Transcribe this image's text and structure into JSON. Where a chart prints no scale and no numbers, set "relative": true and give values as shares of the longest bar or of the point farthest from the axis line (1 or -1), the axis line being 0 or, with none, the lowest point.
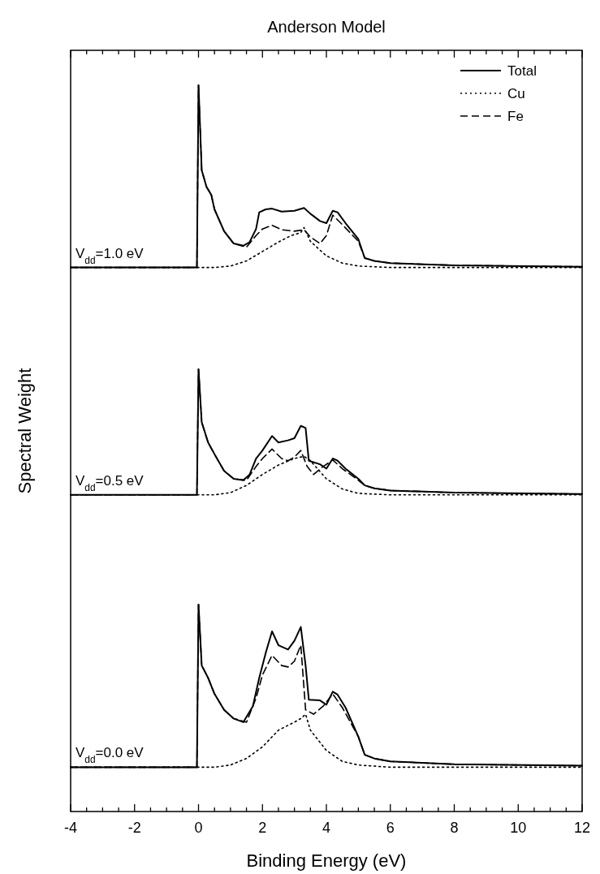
{
  "chart_data": {
    "type": "line",
    "title": "Anderson Model",
    "xlabel": "Binding Energy (eV)",
    "ylabel": "Spectral Weight",
    "relative": true,
    "legend": "top right",
    "grid": false,
    "xlim": [
      -4,
      12
    ],
    "xticks": [
      -4,
      {
        "value": -3.5,
        "label": null
      },
      {
        "value": -3,
        "label": null
      },
      {
        "value": -2.5,
        "label": null
      },
      -2,
      {
        "value": -1.5,
        "label": null
      },
      {
        "value": -1,
        "label": null
      },
      {
        "value": -0.5,
        "label": null
      },
      0,
      {
        "value": 0.5,
        "label": null
      },
      {
        "value": 1,
        "label": null
      },
      {
        "value": 1.5,
        "label": null
      },
      2,
      {
        "value": 2.5,
        "label": null
      },
      {
        "value": 3,
        "label": null
      },
      {
        "value": 3.5,
        "label": null
      },
      4,
      {
        "value": 4.5,
        "label": null
      },
      {
        "value": 5,
        "label": null
      },
      {
        "value": 5.5,
        "label": null
      },
      6,
      {
        "value": 6.5,
        "label": null
      },
      {
        "value": 7,
        "label": null
      },
      {
        "value": 7.5,
        "label": null
      },
      8,
      {
        "value": 8.5,
        "label": null
      },
      {
        "value": 9,
        "label": null
      },
      {
        "value": 9.5,
        "label": null
      },
      10,
      {
        "value": 10.5,
        "label": null
      },
      {
        "value": 11,
        "label": null
      },
      {
        "value": 11.5,
        "label": null
      },
      12
    ],
    "annotations": [
      "V$_{dd}$=1.0 eV",
      "V$_{dd}$=0.5 eV",
      "V$_{dd}$=0.0 eV"
    ],
    "series": [
      {
        "name": "Total",
        "color": "#000000",
        "line_style": "solid",
        "x": [
          -4,
          -0.05,
          0,
          0.1,
          0.25,
          0.4,
          0.5,
          0.8,
          1.1,
          1.4,
          1.6,
          1.8,
          1.9,
          2.1,
          2.3,
          2.6,
          3.0,
          3.3,
          3.5,
          3.8,
          4.0,
          4.2,
          4.35,
          4.6,
          5.0,
          5.2,
          5.5,
          6,
          8,
          12
        ],
        "values": [
          0.749,
          0.749,
          1.0,
          0.883,
          0.86,
          0.849,
          0.829,
          0.799,
          0.782,
          0.779,
          0.784,
          0.802,
          0.825,
          0.829,
          0.83,
          0.826,
          0.827,
          0.831,
          0.823,
          0.813,
          0.81,
          0.827,
          0.825,
          0.81,
          0.788,
          0.762,
          0.758,
          0.755,
          0.752,
          0.75
        ]
      },
      {
        "name": "Cu",
        "color": "#000000",
        "line_style": "dotted",
        "x": [
          -4,
          0.5,
          1.0,
          1.5,
          2.0,
          2.5,
          2.9,
          3.2,
          3.3,
          3.5,
          4.0,
          4.5,
          5.0,
          6,
          12
        ],
        "values": [
          0.749,
          0.749,
          0.751,
          0.758,
          0.771,
          0.784,
          0.793,
          0.797,
          0.804,
          0.785,
          0.765,
          0.755,
          0.751,
          0.749,
          0.749
        ]
      },
      {
        "name": "Fe",
        "color": "#000000",
        "line_style": "dashed",
        "x": [
          -4,
          -0.05,
          0,
          0.1,
          0.25,
          0.4,
          0.5,
          0.8,
          1.1,
          1.5,
          1.8,
          2.0,
          2.3,
          2.6,
          3.0,
          3.3,
          3.5,
          3.8,
          4.0,
          4.2,
          4.5,
          5.0,
          5.2,
          5.5,
          6,
          8,
          12
        ],
        "values": [
          0.749,
          0.749,
          1.0,
          0.883,
          0.86,
          0.849,
          0.829,
          0.799,
          0.782,
          0.777,
          0.793,
          0.802,
          0.807,
          0.801,
          0.799,
          0.801,
          0.791,
          0.782,
          0.793,
          0.821,
          0.808,
          0.785,
          0.762,
          0.758,
          0.755,
          0.752,
          0.75
        ]
      },
      {
        "color": "#000000",
        "line_style": "solid",
        "x": [
          -4,
          -0.05,
          0,
          0.1,
          0.3,
          0.5,
          0.8,
          1.1,
          1.4,
          1.6,
          1.8,
          2.0,
          2.3,
          2.5,
          2.8,
          3.0,
          3.2,
          3.35,
          3.45,
          3.8,
          4.0,
          4.2,
          4.35,
          4.6,
          5.0,
          5.2,
          5.5,
          6,
          8,
          12
        ],
        "values": [
          0.436,
          0.436,
          0.609,
          0.536,
          0.508,
          0.492,
          0.469,
          0.458,
          0.456,
          0.464,
          0.486,
          0.497,
          0.517,
          0.508,
          0.511,
          0.514,
          0.531,
          0.528,
          0.483,
          0.478,
          0.472,
          0.486,
          0.483,
          0.472,
          0.458,
          0.449,
          0.445,
          0.442,
          0.439,
          0.437
        ]
      },
      {
        "color": "#000000",
        "line_style": "dotted",
        "x": [
          -4,
          0.5,
          1.0,
          1.5,
          2.0,
          2.5,
          3.0,
          3.3,
          3.5,
          4.0,
          4.5,
          5.0,
          6,
          12
        ],
        "values": [
          0.436,
          0.436,
          0.439,
          0.449,
          0.464,
          0.477,
          0.486,
          0.489,
          0.483,
          0.458,
          0.444,
          0.438,
          0.436,
          0.436
        ]
      },
      {
        "color": "#000000",
        "line_style": "dashed",
        "x": [
          -4,
          -0.05,
          0,
          0.1,
          0.3,
          0.5,
          0.8,
          1.1,
          1.5,
          1.8,
          2.0,
          2.3,
          2.6,
          2.8,
          3.0,
          3.2,
          3.4,
          3.6,
          3.9,
          4.2,
          4.5,
          5.0,
          5.2,
          5.5,
          6,
          8,
          12
        ],
        "values": [
          0.436,
          0.436,
          0.609,
          0.536,
          0.508,
          0.492,
          0.469,
          0.458,
          0.456,
          0.475,
          0.486,
          0.499,
          0.486,
          0.483,
          0.488,
          0.497,
          0.475,
          0.464,
          0.475,
          0.484,
          0.472,
          0.456,
          0.449,
          0.445,
          0.442,
          0.439,
          0.437
        ]
      },
      {
        "color": "#000000",
        "line_style": "solid",
        "x": [
          -4,
          -0.05,
          0,
          0.1,
          0.3,
          0.5,
          0.8,
          1.1,
          1.4,
          1.7,
          1.9,
          2.1,
          2.3,
          2.5,
          2.8,
          3.0,
          3.2,
          3.35,
          3.45,
          3.8,
          4.0,
          4.2,
          4.35,
          4.6,
          5.0,
          5.2,
          5.5,
          6,
          8,
          12
        ],
        "values": [
          0.061,
          0.061,
          0.285,
          0.201,
          0.184,
          0.162,
          0.14,
          0.128,
          0.123,
          0.145,
          0.184,
          0.218,
          0.248,
          0.229,
          0.223,
          0.235,
          0.254,
          0.201,
          0.154,
          0.153,
          0.147,
          0.165,
          0.161,
          0.143,
          0.103,
          0.078,
          0.073,
          0.069,
          0.065,
          0.063
        ]
      },
      {
        "color": "#000000",
        "line_style": "dotted",
        "x": [
          -4,
          0.5,
          1.0,
          1.5,
          2.0,
          2.5,
          3.0,
          3.2,
          3.35,
          3.5,
          4.0,
          4.5,
          5.0,
          6,
          12
        ],
        "values": [
          0.061,
          0.061,
          0.064,
          0.073,
          0.089,
          0.112,
          0.123,
          0.128,
          0.134,
          0.112,
          0.084,
          0.069,
          0.064,
          0.061,
          0.061
        ]
      },
      {
        "color": "#000000",
        "line_style": "dashed",
        "x": [
          -4,
          -0.05,
          0,
          0.1,
          0.3,
          0.5,
          0.8,
          1.1,
          1.5,
          1.8,
          2.0,
          2.3,
          2.6,
          2.8,
          3.0,
          3.2,
          3.35,
          3.6,
          3.9,
          4.2,
          4.5,
          5.0,
          5.2,
          5.5,
          6,
          8,
          12
        ],
        "values": [
          0.061,
          0.061,
          0.285,
          0.201,
          0.184,
          0.162,
          0.14,
          0.128,
          0.123,
          0.156,
          0.188,
          0.215,
          0.201,
          0.199,
          0.207,
          0.229,
          0.14,
          0.134,
          0.145,
          0.162,
          0.143,
          0.103,
          0.078,
          0.073,
          0.069,
          0.065,
          0.063
        ]
      }
    ]
  }
}
